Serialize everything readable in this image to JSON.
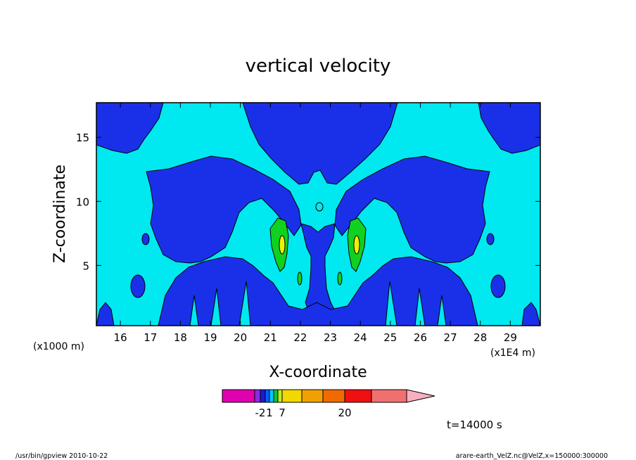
{
  "chart_data": {
    "type": "heatmap",
    "title": "vertical velocity",
    "xlabel": "X-coordinate",
    "ylabel": "Z-coordinate",
    "x_unit_left": "(x1000 m)",
    "x_unit_right": "(x1E4 m)",
    "xlim": [
      15.2,
      30.0
    ],
    "ylim": [
      0.3,
      17.7
    ],
    "x_ticks": [
      "16",
      "17",
      "18",
      "19",
      "20",
      "21",
      "22",
      "23",
      "24",
      "25",
      "26",
      "27",
      "28",
      "29"
    ],
    "x_tick_values": [
      16,
      17,
      18,
      19,
      20,
      21,
      22,
      23,
      24,
      25,
      26,
      27,
      28,
      29
    ],
    "y_ticks": [
      "5",
      "10",
      "15"
    ],
    "y_tick_values": [
      5,
      10,
      15
    ],
    "colorbar": {
      "colors": [
        "#e000b0",
        "#8a2be2",
        "#1a1ad6",
        "#0a5cff",
        "#00c8ff",
        "#10c040",
        "#b8f020",
        "#f0d800",
        "#f0a000",
        "#f06a00",
        "#f01010",
        "#f07070",
        "#f8b0c0"
      ],
      "labels": [
        "-2",
        "1",
        "7",
        "20"
      ]
    },
    "palette": {
      "background_level": "#00e8f0",
      "low_level": "#1a30e8",
      "mid_level": "#10d020",
      "high_level": "#f0f000"
    },
    "time_label": "t=14000 s"
  },
  "footer": {
    "left": "/usr/bin/gpview  2010-10-22",
    "right": "arare-earth_VelZ.nc@VelZ,x=150000:300000"
  }
}
